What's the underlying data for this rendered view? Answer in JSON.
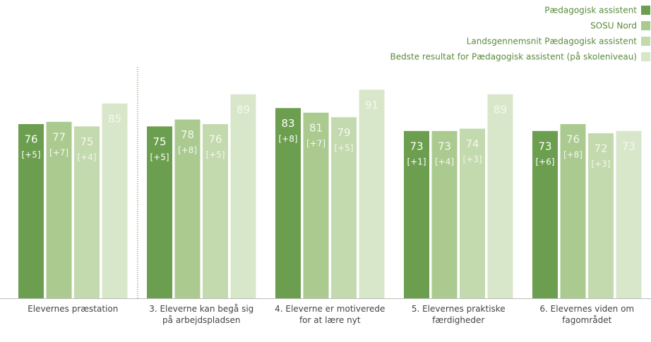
{
  "chart_data": {
    "type": "bar",
    "categories": [
      "Elevernes præstation",
      "3. Eleverne kan begå sig på arbejdspladsen",
      "4. Eleverne er motiverede for at lære nyt",
      "5. Elevernes praktiske færdigheder",
      "6. Elevernes viden om fagområdet"
    ],
    "series": [
      {
        "name": "Pædagogisk assistent",
        "color": "#6b9e4e",
        "values": [
          76,
          75,
          83,
          73,
          73
        ],
        "deltas": [
          "[+5]",
          "[+5]",
          "[+8]",
          "[+1]",
          "[+6]"
        ]
      },
      {
        "name": "SOSU Nord",
        "color": "#abca90",
        "values": [
          77,
          78,
          81,
          73,
          76
        ],
        "deltas": [
          "[+7]",
          "[+8]",
          "[+7]",
          "[+4]",
          "[+8]"
        ]
      },
      {
        "name": "Landsgennemsnit Pædagogisk assistent",
        "color": "#c3d9ae",
        "values": [
          75,
          76,
          79,
          74,
          72
        ],
        "deltas": [
          "[+4]",
          "[+5]",
          "[+5]",
          "[+3]",
          "[+3]"
        ]
      },
      {
        "name": "Bedste resultat for Pædagogisk assistent (på skoleniveau)",
        "color": "#d8e7ca",
        "values": [
          85,
          89,
          91,
          89,
          73
        ]
      }
    ],
    "ylim": [
      0,
      130
    ],
    "legend": "top-right"
  }
}
